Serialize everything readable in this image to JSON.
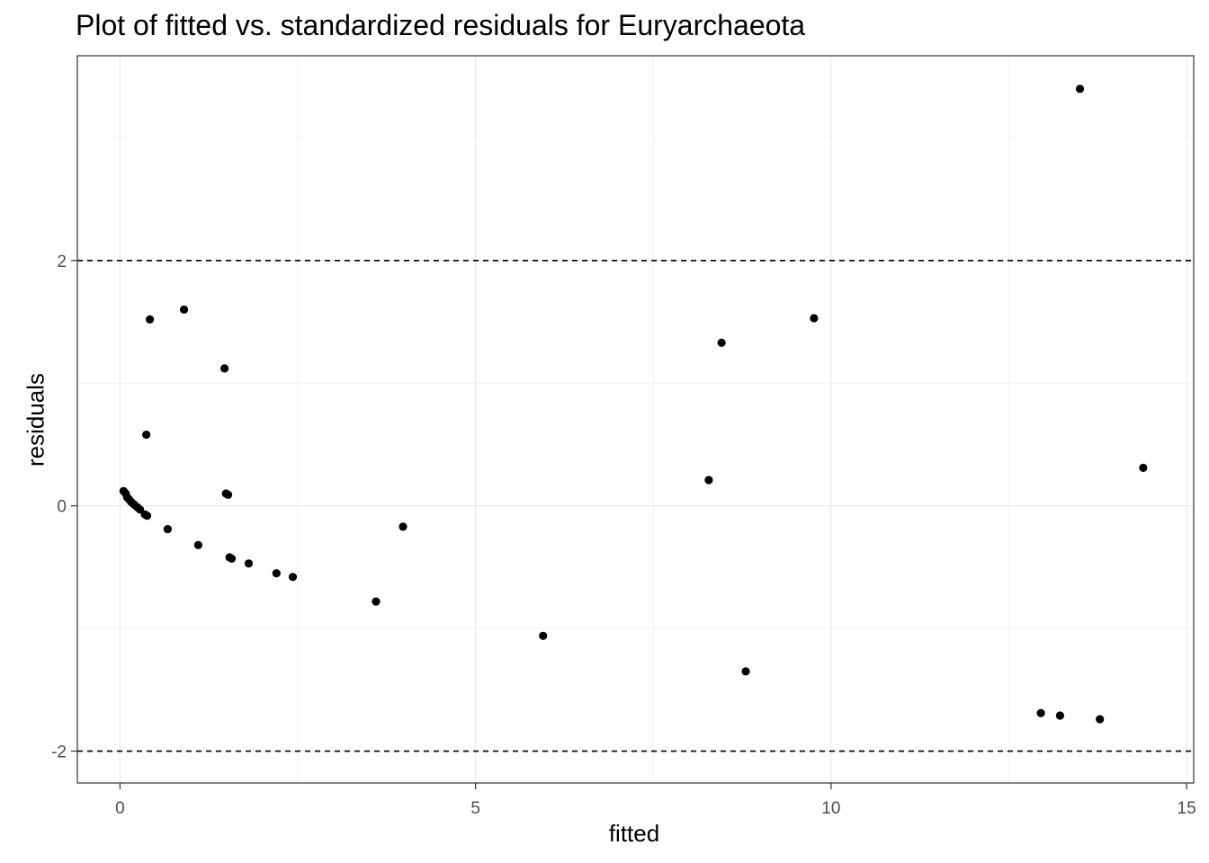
{
  "chart_data": {
    "type": "scatter",
    "title": "Plot of fitted vs. standardized residuals for Euryarchaeota",
    "xlabel": "fitted",
    "ylabel": "residuals",
    "xlim": [
      -0.6,
      15.1
    ],
    "ylim": [
      -2.26,
      3.67
    ],
    "x_ticks": [
      0,
      5,
      10,
      15
    ],
    "y_ticks": [
      -2,
      0,
      2
    ],
    "x_tick_labels": [
      "0",
      "5",
      "10",
      "15"
    ],
    "y_tick_labels": [
      "-2",
      "0",
      "2"
    ],
    "grid": true,
    "reference_lines": [
      2,
      -2
    ],
    "point_color": "#000000",
    "points": [
      {
        "x": 0.05,
        "y": 0.12
      },
      {
        "x": 0.08,
        "y": 0.1
      },
      {
        "x": 0.1,
        "y": 0.07
      },
      {
        "x": 0.13,
        "y": 0.05
      },
      {
        "x": 0.16,
        "y": 0.03
      },
      {
        "x": 0.2,
        "y": 0.01
      },
      {
        "x": 0.24,
        "y": -0.01
      },
      {
        "x": 0.28,
        "y": -0.03
      },
      {
        "x": 0.35,
        "y": -0.07
      },
      {
        "x": 0.38,
        "y": -0.08
      },
      {
        "x": 0.42,
        "y": 1.52
      },
      {
        "x": 0.37,
        "y": 0.58
      },
      {
        "x": 0.67,
        "y": -0.19
      },
      {
        "x": 0.9,
        "y": 1.6
      },
      {
        "x": 1.1,
        "y": -0.32
      },
      {
        "x": 1.47,
        "y": 1.12
      },
      {
        "x": 1.49,
        "y": 0.1
      },
      {
        "x": 1.52,
        "y": 0.09
      },
      {
        "x": 1.54,
        "y": -0.42
      },
      {
        "x": 1.57,
        "y": -0.43
      },
      {
        "x": 1.81,
        "y": -0.47
      },
      {
        "x": 2.2,
        "y": -0.55
      },
      {
        "x": 2.43,
        "y": -0.58
      },
      {
        "x": 3.6,
        "y": -0.78
      },
      {
        "x": 3.98,
        "y": -0.17
      },
      {
        "x": 5.95,
        "y": -1.06
      },
      {
        "x": 8.28,
        "y": 0.21
      },
      {
        "x": 8.46,
        "y": 1.33
      },
      {
        "x": 8.8,
        "y": -1.35
      },
      {
        "x": 9.76,
        "y": 1.53
      },
      {
        "x": 12.95,
        "y": -1.69
      },
      {
        "x": 13.22,
        "y": -1.71
      },
      {
        "x": 13.5,
        "y": 3.4
      },
      {
        "x": 13.78,
        "y": -1.74
      },
      {
        "x": 14.39,
        "y": 0.31
      }
    ]
  }
}
